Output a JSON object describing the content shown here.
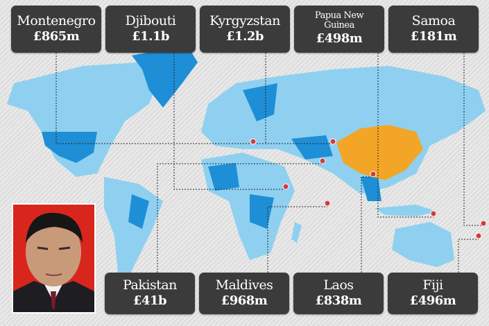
{
  "colors": {
    "land": "#8fd0f0",
    "highlight": "#1e8fd6",
    "china": "#f2a526",
    "box": "#3b3b3b",
    "pin": "#d23b3b",
    "photo_bg": "#d8261c"
  },
  "top_boxes": [
    {
      "name": "Montenegro",
      "value": "£865m"
    },
    {
      "name": "Djibouti",
      "value": "£1.1b"
    },
    {
      "name": "Kyrgyzstan",
      "value": "£1.2b"
    },
    {
      "name": "Papua New Guinea",
      "value": "£498m"
    },
    {
      "name": "Samoa",
      "value": "£181m"
    }
  ],
  "bottom_boxes": [
    {
      "name": "Pakistan",
      "value": "£41b"
    },
    {
      "name": "Maldives",
      "value": "£968m"
    },
    {
      "name": "Laos",
      "value": "£838m"
    },
    {
      "name": "Fiji",
      "value": "£496m"
    }
  ]
}
